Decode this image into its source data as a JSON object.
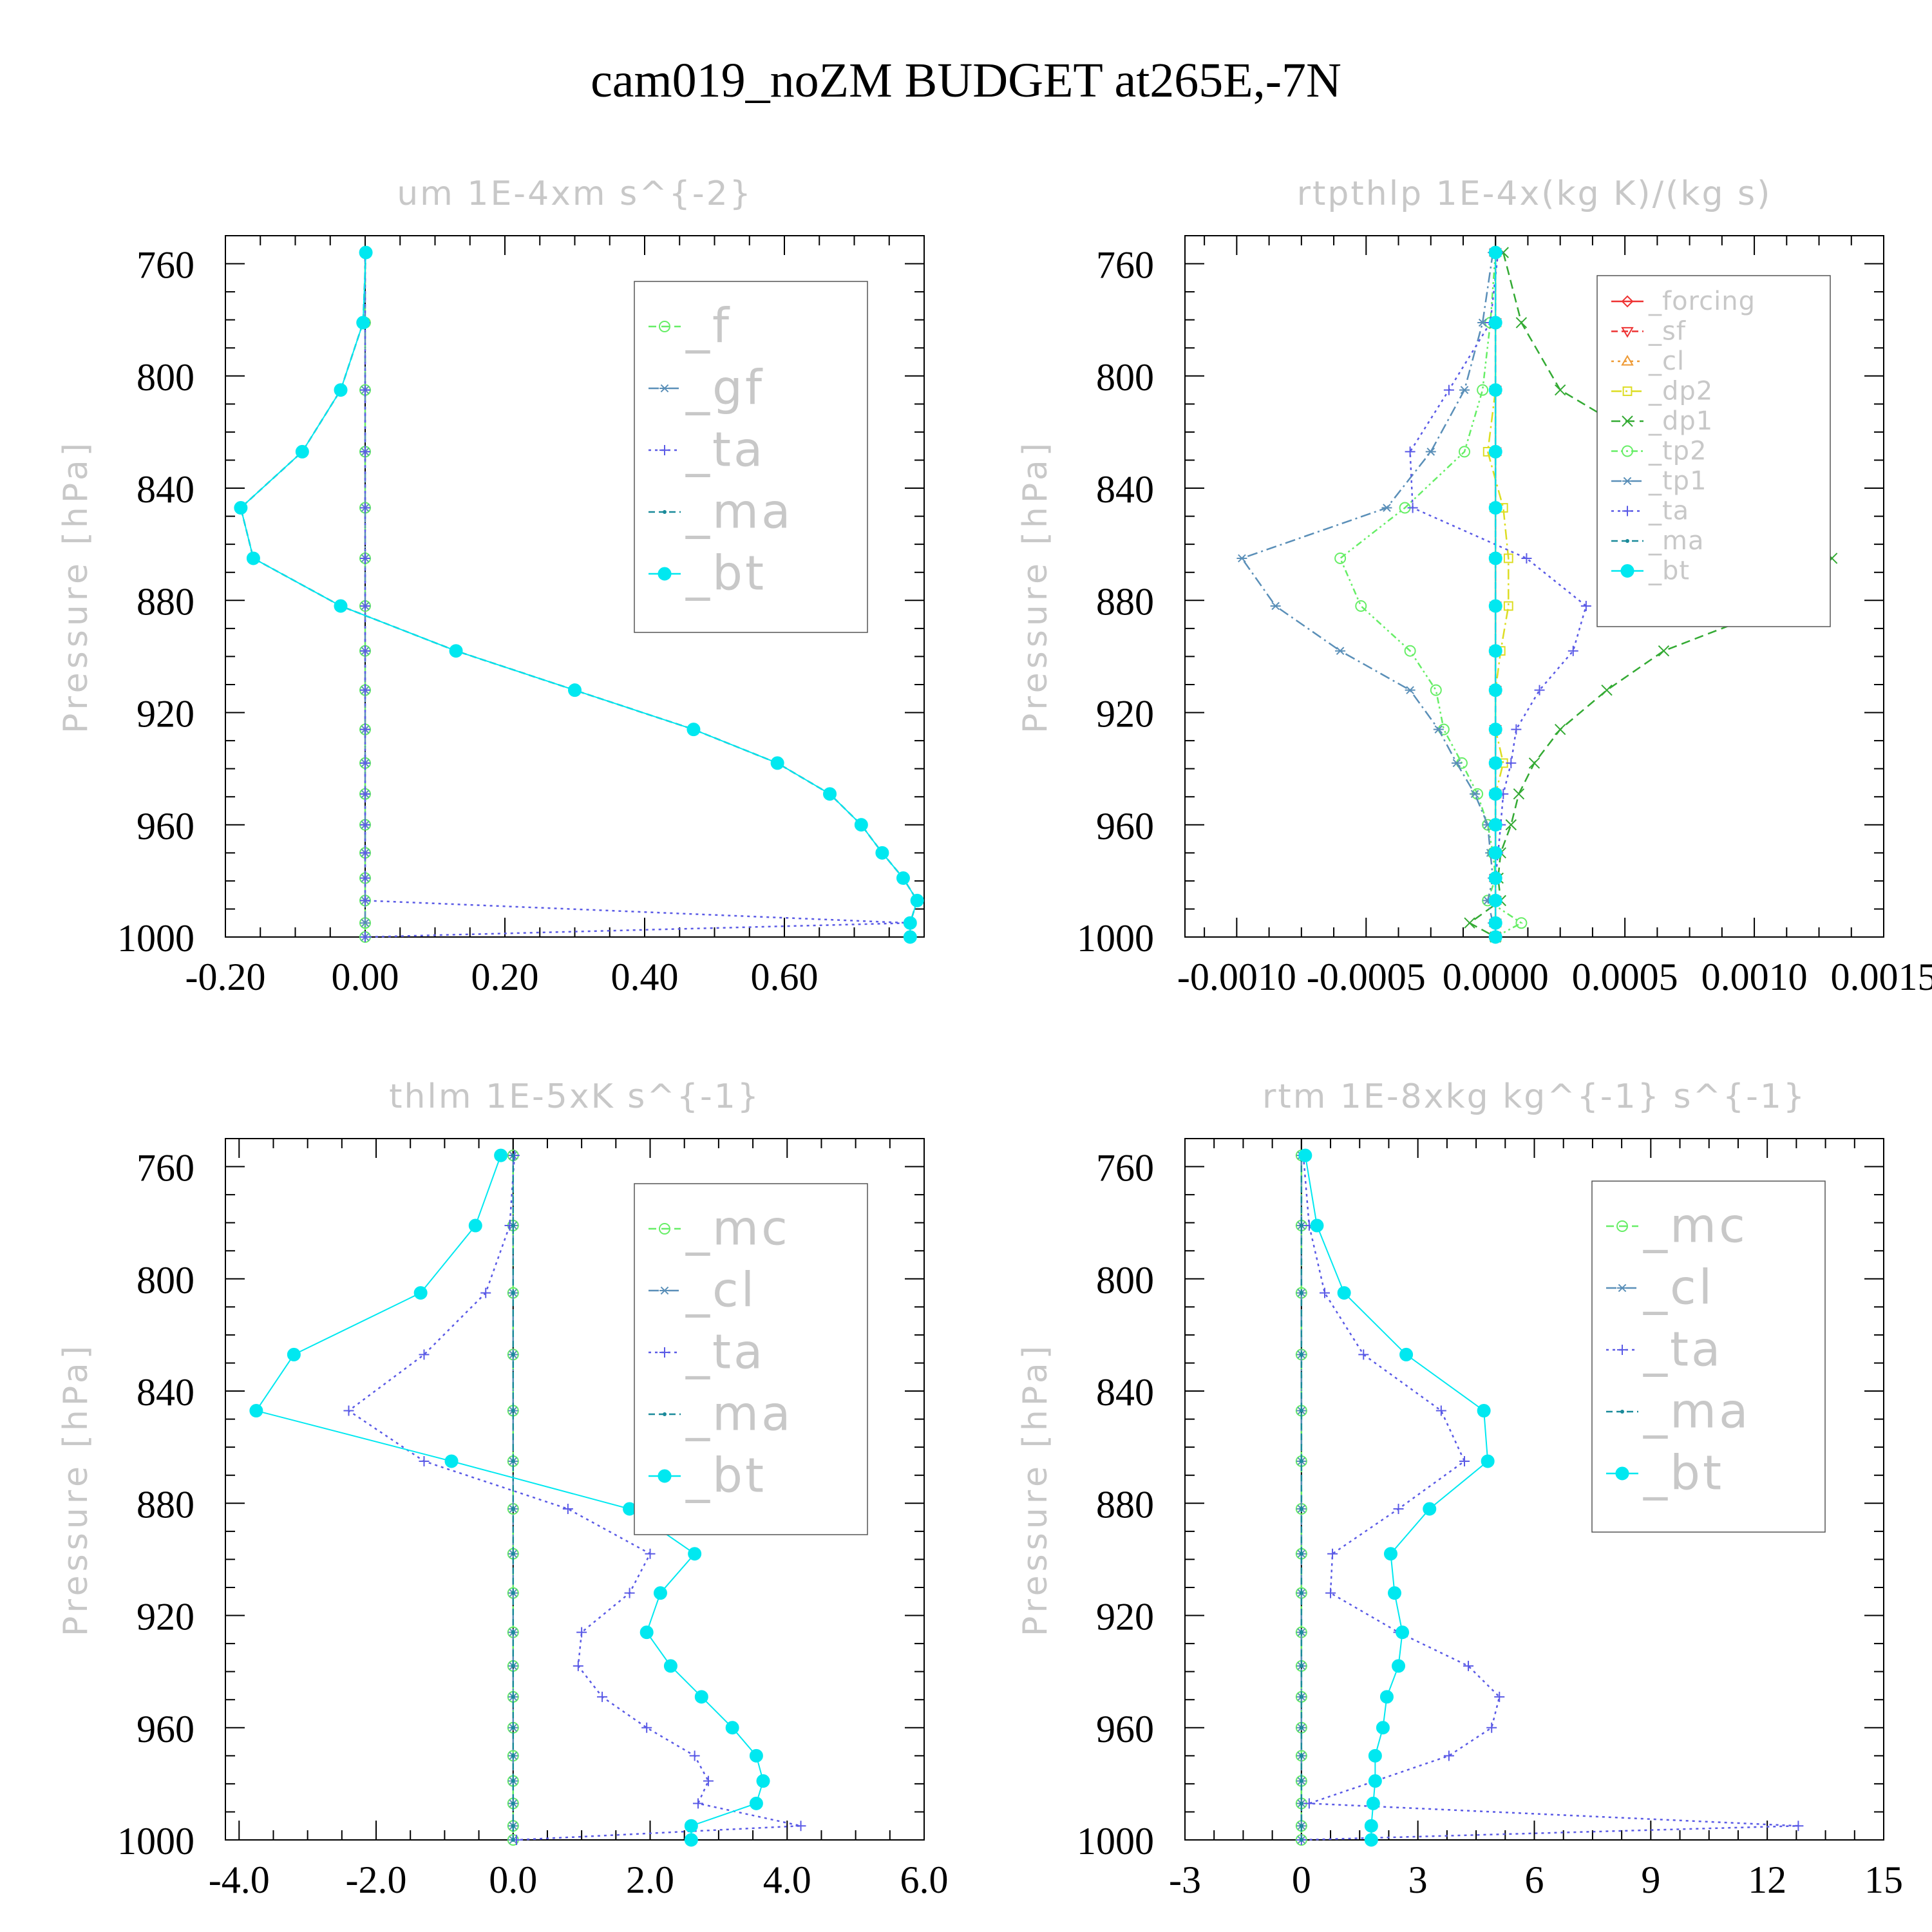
{
  "title": "cam019_noZM  BUDGET at265E,-7N",
  "colors": {
    "green": "#66ee66",
    "steel": "#5a8fb8",
    "blue": "#5a5ae6",
    "teal": "#1a8a9a",
    "cyan": "#00e8f0",
    "red": "#ee3333",
    "orange": "#ee9933",
    "yellow": "#dddd22",
    "dkgreen": "#33aa33",
    "gray": "#c8c8c8"
  },
  "chart_data": [
    {
      "type": "line",
      "panel": "top-left",
      "title": "um  1E-4xm s^{-2}",
      "ylabel": "Pressure [hPa]",
      "xlim": [
        -0.2,
        0.8
      ],
      "xticks": [
        -0.2,
        0,
        0.2,
        0.4,
        0.6
      ],
      "xtick_labels": [
        "-0.20",
        "0.00",
        "0.20",
        "0.40",
        "0.60"
      ],
      "ylim": [
        1000,
        750
      ],
      "yticks": [
        760,
        800,
        840,
        880,
        920,
        960,
        1000
      ],
      "ytick_labels": [
        "760",
        "800",
        "840",
        "880",
        "920",
        "960",
        "1000"
      ],
      "legend": {
        "position": "top-right",
        "font_size": 74
      },
      "pressure": [
        756,
        781,
        805,
        827,
        847,
        865,
        882,
        898,
        912,
        926,
        938,
        949,
        960,
        970,
        979,
        987,
        995,
        1000
      ],
      "series": [
        {
          "name": "_f",
          "color": "green",
          "marker": "circle-open",
          "dash": "12,8",
          "values": [
            0,
            0,
            0,
            0,
            0,
            0,
            0,
            0,
            0,
            0,
            0,
            0,
            0,
            0,
            0,
            0,
            0,
            0
          ]
        },
        {
          "name": "_gf",
          "color": "steel",
          "marker": "star",
          "dash": "16,6,3,6",
          "values": [
            0,
            0,
            0,
            0,
            0,
            0,
            0,
            0,
            0,
            0,
            0,
            0,
            0,
            0,
            0,
            0,
            0,
            0
          ]
        },
        {
          "name": "_ta",
          "color": "blue",
          "marker": "plus",
          "dash": "4,6",
          "values": [
            0,
            0,
            0,
            0,
            0,
            0,
            0,
            0,
            0,
            0,
            0,
            0,
            0,
            0,
            0,
            0,
            0.78,
            0
          ]
        },
        {
          "name": "_ma",
          "color": "teal",
          "marker": "dot",
          "dash": "10,6",
          "values": [
            0.001,
            -0.003,
            -0.035,
            -0.09,
            -0.178,
            -0.16,
            -0.035,
            0.13,
            0.3,
            0.47,
            0.59,
            0.665,
            0.71,
            0.74,
            0.77,
            0.79,
            0.78,
            0.78
          ]
        },
        {
          "name": "_bt",
          "color": "cyan",
          "marker": "filled",
          "dash": "",
          "values": [
            0.001,
            -0.003,
            -0.035,
            -0.09,
            -0.178,
            -0.16,
            -0.035,
            0.13,
            0.3,
            0.47,
            0.59,
            0.665,
            0.71,
            0.74,
            0.77,
            0.79,
            0.78,
            0.78
          ]
        }
      ]
    },
    {
      "type": "line",
      "panel": "top-right",
      "title": "rtpthlp  1E-4x(kg K)/(kg s)",
      "ylabel": "Pressure [hPa]",
      "xlim": [
        -0.0012,
        0.0015
      ],
      "xticks": [
        -0.001,
        -0.0005,
        0,
        0.0005,
        0.001,
        0.0015
      ],
      "xtick_labels": [
        "-0.0010",
        "-0.0005",
        "0.0000",
        "0.0005",
        "0.0010",
        "0.0015"
      ],
      "ylim": [
        1000,
        750
      ],
      "yticks": [
        760,
        800,
        840,
        880,
        920,
        960,
        1000
      ],
      "ytick_labels": [
        "760",
        "800",
        "840",
        "880",
        "920",
        "960",
        "1000"
      ],
      "legend": {
        "position": "top-right",
        "font_size": 40
      },
      "pressure": [
        756,
        781,
        805,
        827,
        847,
        865,
        882,
        898,
        912,
        926,
        938,
        949,
        960,
        970,
        979,
        987,
        995,
        1000
      ],
      "series": [
        {
          "name": "_forcing",
          "color": "red",
          "marker": "diamond",
          "dash": "",
          "values": [
            0,
            0,
            0,
            0,
            0,
            0,
            0,
            0,
            0,
            0,
            0,
            0,
            0,
            0,
            0,
            0,
            0,
            0
          ]
        },
        {
          "name": "_sf",
          "color": "red",
          "marker": "triangle-down",
          "dash": "10,6",
          "values": [
            0,
            0,
            0,
            0,
            0,
            0,
            0,
            0,
            0,
            0,
            0,
            0,
            0,
            0,
            0,
            0,
            0,
            0
          ]
        },
        {
          "name": "_cl",
          "color": "orange",
          "marker": "triangle",
          "dash": "4,6",
          "values": [
            0,
            0,
            0,
            0,
            0,
            0,
            0,
            0,
            0,
            0,
            0,
            0,
            0,
            0,
            0,
            0,
            0,
            0
          ]
        },
        {
          "name": "_dp2",
          "color": "yellow",
          "marker": "square",
          "dash": "16,6,3,6",
          "values": [
            0,
            0,
            0,
            -3e-05,
            3e-05,
            5e-05,
            5e-05,
            2e-05,
            0,
            0,
            3e-05,
            0,
            0,
            0,
            0,
            0,
            0,
            0
          ]
        },
        {
          "name": "_dp1",
          "color": "dkgreen",
          "marker": "x",
          "dash": "14,8",
          "values": [
            3e-05,
            0.0001,
            0.00025,
            0.00065,
            0.00105,
            0.0013,
            0.0011,
            0.00065,
            0.00043,
            0.00025,
            0.00015,
            9e-05,
            6e-05,
            2e-05,
            1e-05,
            2e-05,
            -0.0001,
            0
          ]
        },
        {
          "name": "_tp2",
          "color": "green",
          "marker": "circle-open",
          "dash": "10,5,3,5,3,5",
          "values": [
            0,
            -2e-05,
            -5e-05,
            -0.00012,
            -0.00035,
            -0.0006,
            -0.00052,
            -0.00033,
            -0.00023,
            -0.0002,
            -0.00013,
            -7e-05,
            -3e-05,
            -1e-05,
            0,
            -3e-05,
            0.0001,
            0
          ]
        },
        {
          "name": "_tp1",
          "color": "steel",
          "marker": "star",
          "dash": "16,6,3,6",
          "values": [
            -1e-05,
            -5e-05,
            -0.00012,
            -0.00025,
            -0.00042,
            -0.00098,
            -0.00085,
            -0.0006,
            -0.00033,
            -0.00022,
            -0.00015,
            -8e-05,
            -3e-05,
            -2e-05,
            -1e-05,
            -3e-05,
            -1e-05,
            0
          ]
        },
        {
          "name": "_ta",
          "color": "blue",
          "marker": "plus",
          "dash": "4,6",
          "values": [
            1e-05,
            -2e-05,
            -0.00018,
            -0.00033,
            -0.00032,
            0.00012,
            0.00035,
            0.0003,
            0.00017,
            8e-05,
            6e-05,
            3e-05,
            2e-05,
            1e-05,
            0,
            0,
            0,
            0
          ]
        },
        {
          "name": "_ma",
          "color": "teal",
          "marker": "dot",
          "dash": "10,6",
          "values": [
            0,
            0,
            0,
            0,
            0,
            0,
            0,
            0,
            0,
            0,
            0,
            0,
            0,
            0,
            0,
            0,
            0,
            0
          ]
        },
        {
          "name": "_bt",
          "color": "cyan",
          "marker": "filled",
          "dash": "",
          "values": [
            0,
            0,
            0,
            0,
            0,
            0,
            0,
            0,
            0,
            0,
            0,
            0,
            0,
            0,
            0,
            0,
            0,
            0
          ]
        }
      ]
    },
    {
      "type": "line",
      "panel": "bottom-left",
      "title": "thlm  1E-5xK s^{-1}",
      "ylabel": "Pressure [hPa]",
      "xlim": [
        -4.2,
        6
      ],
      "xticks": [
        -4,
        -2,
        0,
        2,
        4,
        6
      ],
      "xtick_labels": [
        "-4.0",
        "-2.0",
        "0.0",
        "2.0",
        "4.0",
        "6.0"
      ],
      "ylim": [
        1000,
        750
      ],
      "yticks": [
        760,
        800,
        840,
        880,
        920,
        960,
        1000
      ],
      "ytick_labels": [
        "760",
        "800",
        "840",
        "880",
        "920",
        "960",
        "1000"
      ],
      "legend": {
        "position": "top-right",
        "font_size": 74
      },
      "pressure": [
        756,
        781,
        805,
        827,
        847,
        865,
        882,
        898,
        912,
        926,
        938,
        949,
        960,
        970,
        979,
        987,
        995,
        1000
      ],
      "series": [
        {
          "name": "_mc",
          "color": "green",
          "marker": "circle-open",
          "dash": "12,8",
          "values": [
            0,
            0,
            0,
            0,
            0,
            0,
            0,
            0,
            0,
            0,
            0,
            0,
            0,
            0,
            0,
            0,
            0,
            0
          ]
        },
        {
          "name": "_cl",
          "color": "steel",
          "marker": "star",
          "dash": "16,6,3,6",
          "values": [
            0,
            0,
            0,
            0,
            0,
            0,
            0,
            0,
            0,
            0,
            0,
            0,
            0,
            0,
            0,
            0,
            0,
            0
          ]
        },
        {
          "name": "_ta",
          "color": "blue",
          "marker": "plus",
          "dash": "4,6",
          "values": [
            0.02,
            -0.05,
            -0.4,
            -1.3,
            -2.4,
            -1.3,
            0.8,
            2.0,
            1.7,
            1.0,
            0.95,
            1.3,
            1.95,
            2.65,
            2.85,
            2.7,
            4.2,
            0.05
          ]
        },
        {
          "name": "_ma",
          "color": "teal",
          "marker": "dot",
          "dash": "10,6",
          "values": [
            0,
            0,
            0,
            0,
            0,
            0,
            0,
            0,
            0,
            0,
            0,
            0,
            0,
            0,
            0,
            0,
            0,
            0
          ]
        },
        {
          "name": "_bt",
          "color": "cyan",
          "marker": "filled",
          "dash": "",
          "values": [
            -0.18,
            -0.55,
            -1.35,
            -3.2,
            -3.75,
            -0.9,
            1.7,
            2.65,
            2.15,
            1.95,
            2.3,
            2.75,
            3.2,
            3.55,
            3.65,
            3.55,
            2.6,
            2.6
          ]
        }
      ]
    },
    {
      "type": "line",
      "panel": "bottom-right",
      "title": "rtm  1E-8xkg kg^{-1} s^{-1}",
      "ylabel": "Pressure [hPa]",
      "xlim": [
        -3,
        15
      ],
      "xticks": [
        -3,
        0,
        3,
        6,
        9,
        12,
        15
      ],
      "xtick_labels": [
        "-3",
        "0",
        "3",
        "6",
        "9",
        "12",
        "15"
      ],
      "ylim": [
        1000,
        750
      ],
      "yticks": [
        760,
        800,
        840,
        880,
        920,
        960,
        1000
      ],
      "ytick_labels": [
        "760",
        "800",
        "840",
        "880",
        "920",
        "960",
        "1000"
      ],
      "legend": {
        "position": "top-right",
        "font_size": 74
      },
      "pressure": [
        756,
        781,
        805,
        827,
        847,
        865,
        882,
        898,
        912,
        926,
        938,
        949,
        960,
        970,
        979,
        987,
        995,
        1000
      ],
      "series": [
        {
          "name": "_mc",
          "color": "green",
          "marker": "circle-open",
          "dash": "12,8",
          "values": [
            0,
            0,
            0,
            0,
            0,
            0,
            0,
            0,
            0,
            0,
            0,
            0,
            0,
            0,
            0,
            0,
            0,
            0
          ]
        },
        {
          "name": "_cl",
          "color": "steel",
          "marker": "star",
          "dash": "16,6,3,6",
          "values": [
            0,
            0,
            0,
            0,
            0,
            0,
            0,
            0,
            0,
            0,
            0,
            0,
            0,
            0,
            0,
            0,
            0,
            0
          ]
        },
        {
          "name": "_ta",
          "color": "blue",
          "marker": "plus",
          "dash": "4,6",
          "values": [
            0.05,
            0.2,
            0.6,
            1.6,
            3.6,
            4.2,
            2.5,
            0.8,
            0.75,
            2.5,
            4.3,
            5.1,
            4.9,
            3.8,
            1.9,
            0.2,
            12.8,
            0
          ]
        },
        {
          "name": "_ma",
          "color": "teal",
          "marker": "dot",
          "dash": "10,6",
          "values": [
            0,
            0,
            0,
            0,
            0,
            0,
            0,
            0,
            0,
            0,
            0,
            0,
            0,
            0,
            0,
            0,
            0,
            0
          ]
        },
        {
          "name": "_bt",
          "color": "cyan",
          "marker": "filled",
          "dash": "",
          "values": [
            0.1,
            0.4,
            1.1,
            2.7,
            4.7,
            4.8,
            3.3,
            2.3,
            2.4,
            2.6,
            2.5,
            2.2,
            2.1,
            1.9,
            1.9,
            1.85,
            1.8,
            1.8
          ]
        }
      ]
    }
  ]
}
